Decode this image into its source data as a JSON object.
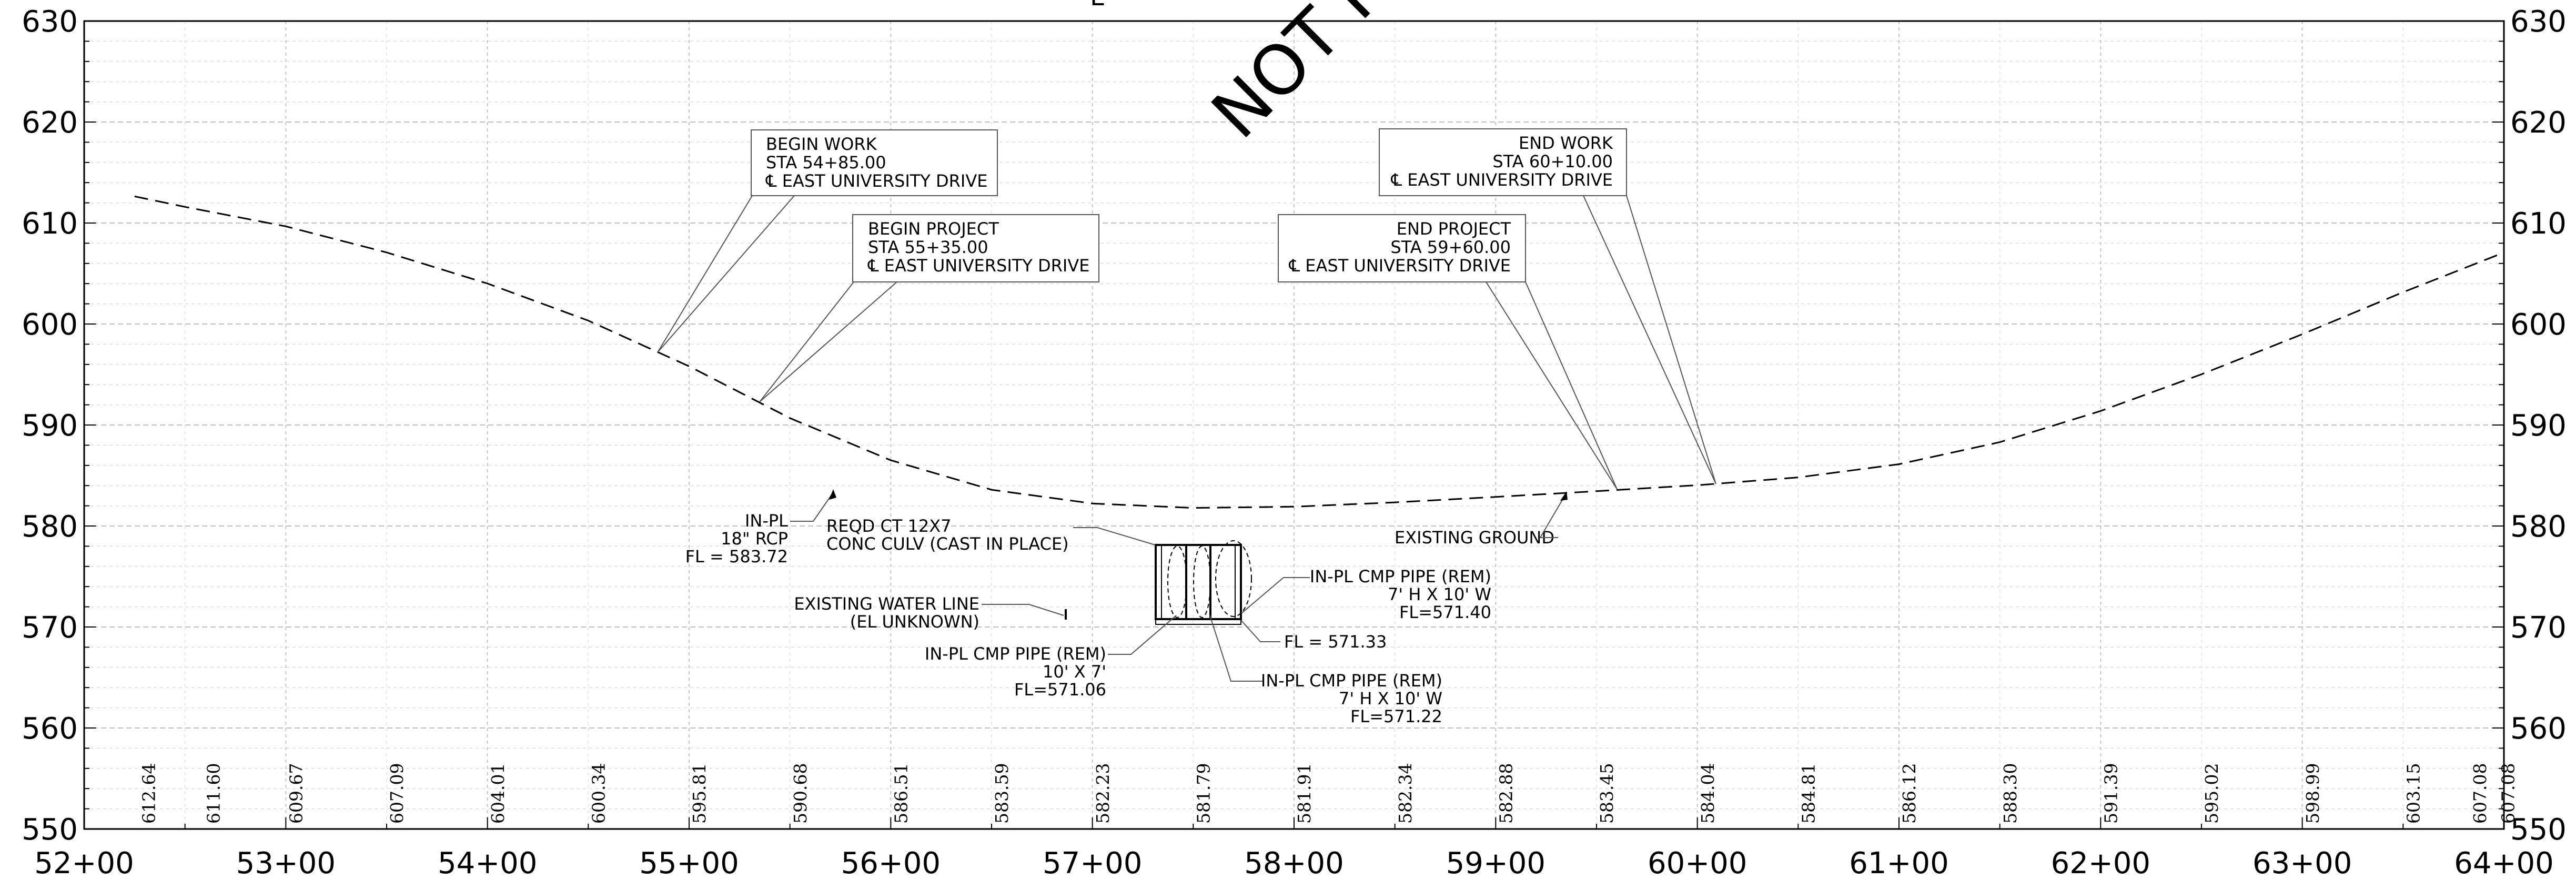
{
  "watermark": "NOT FO",
  "top_fragment": "L",
  "colors": {
    "ink": "#000000",
    "grid": "#c8c8c8",
    "leader": "#555555"
  },
  "axes": {
    "x_range": [
      52,
      64
    ],
    "y_range": [
      550,
      630
    ],
    "x_tick_labels": [
      "52+00",
      "53+00",
      "54+00",
      "55+00",
      "56+00",
      "57+00",
      "58+00",
      "59+00",
      "60+00",
      "61+00",
      "62+00",
      "63+00",
      "64+00"
    ],
    "y_tick_labels": [
      "550",
      "560",
      "570",
      "580",
      "590",
      "600",
      "610",
      "620",
      "630"
    ]
  },
  "existing_ground": {
    "stations": [
      52.25,
      52.5,
      53,
      53.5,
      54,
      54.5,
      55,
      55.5,
      56,
      56.5,
      57,
      57.5,
      58,
      58.5,
      59,
      59.5,
      60,
      60.5,
      61,
      61.5,
      62,
      62.5,
      63,
      63.5,
      64
    ],
    "elevations": [
      612.64,
      611.6,
      609.67,
      607.09,
      604.01,
      600.34,
      595.81,
      590.68,
      586.51,
      583.59,
      582.23,
      581.79,
      581.91,
      582.34,
      582.88,
      583.45,
      584.04,
      584.81,
      586.12,
      588.3,
      591.39,
      595.02,
      598.99,
      603.15,
      607.08
    ]
  },
  "elevation_labels": [
    {
      "sta": 52.32,
      "text": "612.64"
    },
    {
      "sta": 52.64,
      "text": "611.60"
    },
    {
      "sta": 53.05,
      "text": "609.67"
    },
    {
      "sta": 53.55,
      "text": "607.09"
    },
    {
      "sta": 54.05,
      "text": "604.01"
    },
    {
      "sta": 54.55,
      "text": "600.34"
    },
    {
      "sta": 55.05,
      "text": "595.81"
    },
    {
      "sta": 55.55,
      "text": "590.68"
    },
    {
      "sta": 56.05,
      "text": "586.51"
    },
    {
      "sta": 56.55,
      "text": "583.59"
    },
    {
      "sta": 57.05,
      "text": "582.23"
    },
    {
      "sta": 57.55,
      "text": "581.79"
    },
    {
      "sta": 58.05,
      "text": "581.91"
    },
    {
      "sta": 58.55,
      "text": "582.34"
    },
    {
      "sta": 59.05,
      "text": "582.88"
    },
    {
      "sta": 59.55,
      "text": "583.45"
    },
    {
      "sta": 60.05,
      "text": "584.04"
    },
    {
      "sta": 60.55,
      "text": "584.81"
    },
    {
      "sta": 61.05,
      "text": "586.12"
    },
    {
      "sta": 61.55,
      "text": "588.30"
    },
    {
      "sta": 62.05,
      "text": "591.39"
    },
    {
      "sta": 62.55,
      "text": "595.02"
    },
    {
      "sta": 63.05,
      "text": "598.99"
    },
    {
      "sta": 63.55,
      "text": "603.15"
    },
    {
      "sta": 63.88,
      "text": "607.08"
    },
    {
      "sta": 64.02,
      "text": "607.08"
    }
  ],
  "callouts": {
    "begin_work": [
      "BEGIN WORK",
      "STA 54+85.00",
      "℄ EAST UNIVERSITY DRIVE"
    ],
    "begin_project": [
      "BEGIN PROJECT",
      "STA 55+35.00",
      "℄ EAST UNIVERSITY DRIVE"
    ],
    "end_work": [
      "END WORK",
      "STA 60+10.00",
      "℄ EAST UNIVERSITY DRIVE"
    ],
    "end_project": [
      "END PROJECT",
      "STA 59+60.00",
      "℄ EAST UNIVERSITY DRIVE"
    ],
    "in_pl_rcp": [
      "IN-PL",
      "18\" RCP",
      "FL = 583.72"
    ],
    "reqd_culvert": [
      "REQD CT 12X7",
      "CONC CULV (CAST IN PLACE)"
    ],
    "existing_ground": "EXISTING GROUND",
    "water_line": [
      "EXISTING WATER LINE",
      "(EL UNKNOWN)"
    ],
    "cmp_right": [
      "IN-PL CMP PIPE (REM)",
      "7' H X 10' W",
      "FL=571.40"
    ],
    "fl_center": "FL = 571.33",
    "cmp_left": [
      "IN-PL CMP PIPE (REM)",
      "10' X 7'",
      "FL=571.06"
    ],
    "cmp_bottom": [
      "IN-PL CMP PIPE (REM)",
      "7' H X 10' W",
      "FL=571.22"
    ]
  }
}
